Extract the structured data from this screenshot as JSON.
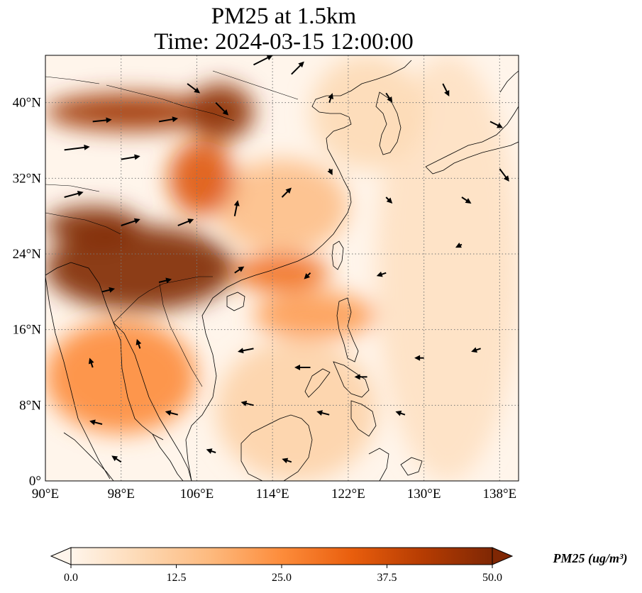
{
  "title": {
    "line1": "PM25 at 1.5km",
    "line2": "Time: 2024-03-15 12:00:00"
  },
  "colorbar": {
    "label": "PM25 (ug/m³)",
    "min": 0.0,
    "max": 50.0,
    "ticks": [
      "0.0",
      "12.5",
      "25.0",
      "37.5",
      "50.0"
    ],
    "colormap": [
      "#fff5eb",
      "#fdd9b4",
      "#fdb97d",
      "#fd8c3b",
      "#e95e0d",
      "#b63c02",
      "#7f2704"
    ],
    "extend": "both"
  },
  "chart_data": {
    "type": "heatmap",
    "title": "PM25 at 1.5km",
    "subtitle": "Time: 2024-03-15 12:00:00",
    "variable": "PM25",
    "units": "ug/m3",
    "xlim": [
      90,
      140
    ],
    "ylim": [
      0,
      45
    ],
    "x_ticks": [
      90,
      98,
      106,
      114,
      122,
      130,
      138
    ],
    "y_ticks": [
      0,
      8,
      16,
      24,
      32,
      40
    ],
    "x_tick_labels": [
      "90°E",
      "98°E",
      "106°E",
      "114°E",
      "122°E",
      "130°E",
      "138°E"
    ],
    "y_tick_labels": [
      "0°",
      "8°N",
      "16°N",
      "24°N",
      "32°N",
      "40°N"
    ],
    "grid": true,
    "grid_style": "dotted",
    "overlay": "wind vectors (arrows)",
    "regions": [
      {
        "lon": [
          90,
          110
        ],
        "lat": [
          18,
          27
        ],
        "value": 50
      },
      {
        "lon": [
          90,
          100
        ],
        "lat": [
          25,
          29
        ],
        "value": 50
      },
      {
        "lon": [
          90,
          108
        ],
        "lat": [
          37,
          41
        ],
        "value": 45
      },
      {
        "lon": [
          105,
          112
        ],
        "lat": [
          36,
          42
        ],
        "value": 48
      },
      {
        "lon": [
          103,
          110
        ],
        "lat": [
          28,
          36
        ],
        "value": 35
      },
      {
        "lon": [
          110,
          120
        ],
        "lat": [
          20,
          24
        ],
        "value": 30
      },
      {
        "lon": [
          90,
          106
        ],
        "lat": [
          5,
          17
        ],
        "value": 25
      },
      {
        "lon": [
          112,
          125
        ],
        "lat": [
          15,
          20
        ],
        "value": 22
      },
      {
        "lon": [
          108,
          122
        ],
        "lat": [
          24,
          34
        ],
        "value": 15
      },
      {
        "lon": [
          118,
          130
        ],
        "lat": [
          33,
          45
        ],
        "value": 8
      },
      {
        "lon": [
          125,
          140
        ],
        "lat": [
          0,
          45
        ],
        "value": 6
      },
      {
        "lon": [
          108,
          125
        ],
        "lat": [
          0,
          15
        ],
        "value": 10
      }
    ],
    "wind_vectors": [
      {
        "lon": 92,
        "lat": 35,
        "u": 4,
        "v": 0.5
      },
      {
        "lon": 95,
        "lat": 38,
        "u": 3,
        "v": 0.3
      },
      {
        "lon": 98,
        "lat": 34,
        "u": 3,
        "v": 0.5
      },
      {
        "lon": 102,
        "lat": 38,
        "u": 3,
        "v": 0.5
      },
      {
        "lon": 105,
        "lat": 42,
        "u": 2,
        "v": -1.5
      },
      {
        "lon": 108,
        "lat": 40,
        "u": 2,
        "v": -2
      },
      {
        "lon": 112,
        "lat": 44,
        "u": 3,
        "v": 1.5
      },
      {
        "lon": 116,
        "lat": 43,
        "u": 2,
        "v": 2
      },
      {
        "lon": 120,
        "lat": 40,
        "u": 0.5,
        "v": 1.5
      },
      {
        "lon": 126,
        "lat": 41,
        "u": 1,
        "v": -1.5
      },
      {
        "lon": 132,
        "lat": 42,
        "u": 1,
        "v": -2
      },
      {
        "lon": 137,
        "lat": 38,
        "u": 2,
        "v": -1
      },
      {
        "lon": 138,
        "lat": 33,
        "u": 1.5,
        "v": -2
      },
      {
        "lon": 92,
        "lat": 30,
        "u": 3,
        "v": 0.8
      },
      {
        "lon": 98,
        "lat": 27,
        "u": 3,
        "v": 1
      },
      {
        "lon": 104,
        "lat": 27,
        "u": 2.5,
        "v": 1
      },
      {
        "lon": 110,
        "lat": 28,
        "u": 0.5,
        "v": 2.5
      },
      {
        "lon": 115,
        "lat": 30,
        "u": 1.5,
        "v": 1.5
      },
      {
        "lon": 120,
        "lat": 33,
        "u": 0.5,
        "v": -1
      },
      {
        "lon": 126,
        "lat": 30,
        "u": 1,
        "v": -1
      },
      {
        "lon": 134,
        "lat": 30,
        "u": 1.5,
        "v": -1
      },
      {
        "lon": 96,
        "lat": 20,
        "u": 2,
        "v": 0.5
      },
      {
        "lon": 102,
        "lat": 21,
        "u": 2,
        "v": 0.5
      },
      {
        "lon": 110,
        "lat": 22,
        "u": 1.5,
        "v": 1
      },
      {
        "lon": 118,
        "lat": 22,
        "u": -1,
        "v": -1
      },
      {
        "lon": 126,
        "lat": 22,
        "u": -1.5,
        "v": -0.5
      },
      {
        "lon": 134,
        "lat": 25,
        "u": -1,
        "v": -0.5
      },
      {
        "lon": 95,
        "lat": 12,
        "u": -0.5,
        "v": 1.5
      },
      {
        "lon": 100,
        "lat": 14,
        "u": -0.5,
        "v": 1.5
      },
      {
        "lon": 112,
        "lat": 14,
        "u": -2.5,
        "v": -0.5
      },
      {
        "lon": 118,
        "lat": 12,
        "u": -2.5,
        "v": 0
      },
      {
        "lon": 124,
        "lat": 11,
        "u": -2,
        "v": 0
      },
      {
        "lon": 130,
        "lat": 13,
        "u": -1.5,
        "v": 0
      },
      {
        "lon": 136,
        "lat": 14,
        "u": -1.5,
        "v": -0.5
      },
      {
        "lon": 96,
        "lat": 6,
        "u": -2,
        "v": 0.5
      },
      {
        "lon": 104,
        "lat": 7,
        "u": -2,
        "v": 0.5
      },
      {
        "lon": 112,
        "lat": 8,
        "u": -2,
        "v": 0.5
      },
      {
        "lon": 120,
        "lat": 7,
        "u": -2,
        "v": 0.5
      },
      {
        "lon": 128,
        "lat": 7,
        "u": -1.5,
        "v": 0.5
      },
      {
        "lon": 98,
        "lat": 2,
        "u": -1.5,
        "v": 1
      },
      {
        "lon": 108,
        "lat": 3,
        "u": -1.5,
        "v": 0.5
      },
      {
        "lon": 116,
        "lat": 2,
        "u": -1.5,
        "v": 0.5
      }
    ]
  }
}
